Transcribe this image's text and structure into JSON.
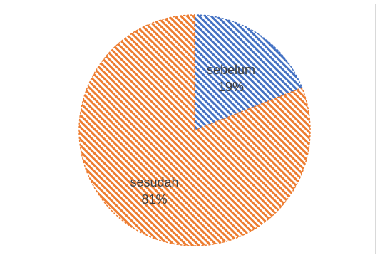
{
  "chart_data": {
    "type": "pie",
    "title": "",
    "series": [
      {
        "labels": [
          "sebelum",
          "sesudah"
        ],
        "values": [
          19,
          81
        ],
        "percent_labels": [
          "19%",
          "81%"
        ]
      }
    ],
    "colors": [
      "#4472C4",
      "#ED7D31"
    ],
    "fill_style": "diagonal-hatch",
    "legend": "none"
  }
}
